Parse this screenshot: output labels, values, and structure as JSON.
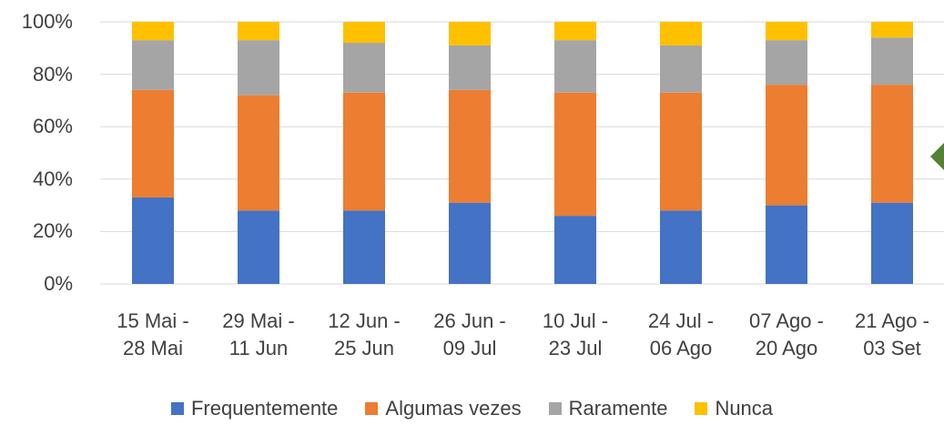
{
  "chart_data": {
    "type": "stacked_bar",
    "categories": [
      "15 Mai -\n28 Mai",
      "29 Mai -\n11 Jun",
      "12 Jun -\n25 Jun",
      "26 Jun -\n09 Jul",
      "10 Jul -\n23 Jul",
      "24 Jul -\n06 Ago",
      "07 Ago -\n20 Ago",
      "21 Ago -\n03 Set"
    ],
    "series": [
      {
        "name": "Frequentemente",
        "color": "#4472c4",
        "values": [
          33,
          28,
          28,
          31,
          26,
          28,
          30,
          31
        ]
      },
      {
        "name": "Algumas vezes",
        "color": "#ed7d31",
        "values": [
          41,
          44,
          45,
          43,
          47,
          45,
          46,
          45
        ]
      },
      {
        "name": "Raramente",
        "color": "#a5a5a5",
        "values": [
          19,
          21,
          19,
          17,
          20,
          18,
          17,
          18
        ]
      },
      {
        "name": "Nunca",
        "color": "#ffc000",
        "values": [
          7,
          7,
          8,
          9,
          7,
          9,
          7,
          6
        ]
      }
    ],
    "ylim": [
      0,
      100
    ],
    "yticks": [
      {
        "value": 0,
        "label": "0%"
      },
      {
        "value": 20,
        "label": "20%"
      },
      {
        "value": 40,
        "label": "40%"
      },
      {
        "value": 60,
        "label": "60%"
      },
      {
        "value": 80,
        "label": "80%"
      },
      {
        "value": 100,
        "label": "100%"
      }
    ],
    "grid": true,
    "legend": "bottom"
  }
}
